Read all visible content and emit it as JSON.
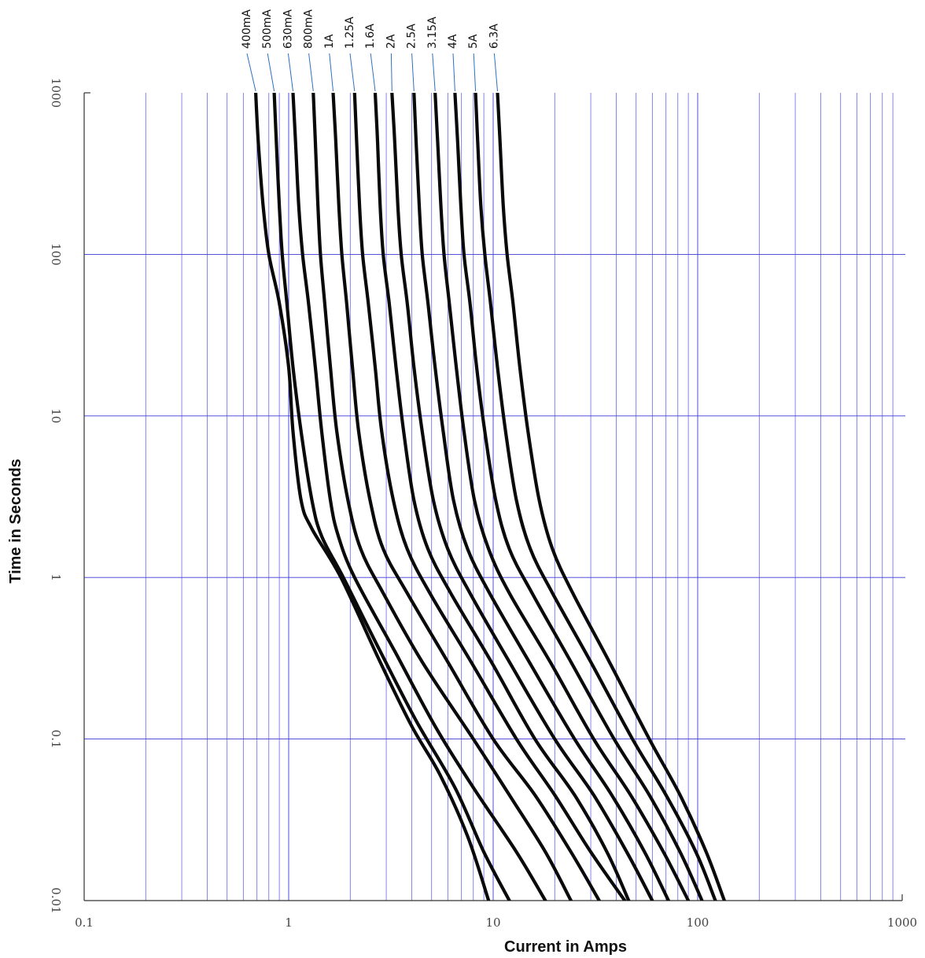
{
  "chart_data": {
    "type": "line",
    "title": "",
    "xlabel": "Current in Amps",
    "ylabel": "Time in Seconds",
    "xscale": "log",
    "yscale": "log",
    "xlim": [
      0.1,
      1000
    ],
    "ylim": [
      0.01,
      1000
    ],
    "x_tick_labels": [
      "0.1",
      "1",
      "10",
      "100",
      "1000"
    ],
    "y_tick_labels": [
      "0.01",
      "0.1",
      "1",
      "10",
      "100",
      "1000"
    ],
    "grid": true,
    "legend_placement": "top, labels rotated with leader lines to curve ends",
    "colors": {
      "grid": "#3b3bd6",
      "curve": "#0a0a0a",
      "leader": "#2d6fc4"
    },
    "series": [
      {
        "name": "400mA",
        "points": [
          [
            0.69,
            1000
          ],
          [
            0.71,
            500
          ],
          [
            0.75,
            200
          ],
          [
            0.8,
            100
          ],
          [
            0.9,
            50
          ],
          [
            1.0,
            20
          ],
          [
            1.05,
            8
          ],
          [
            1.15,
            3
          ],
          [
            1.3,
            2
          ],
          [
            1.8,
            1
          ],
          [
            2.8,
            0.3
          ],
          [
            4.0,
            0.12
          ],
          [
            5.5,
            0.06
          ],
          [
            7.5,
            0.025
          ],
          [
            9.5,
            0.01
          ]
        ]
      },
      {
        "name": "500mA",
        "points": [
          [
            0.85,
            1000
          ],
          [
            0.87,
            500
          ],
          [
            0.9,
            200
          ],
          [
            0.93,
            100
          ],
          [
            0.98,
            50
          ],
          [
            1.05,
            20
          ],
          [
            1.15,
            8
          ],
          [
            1.3,
            3
          ],
          [
            1.45,
            1.8
          ],
          [
            1.85,
            1
          ],
          [
            2.8,
            0.35
          ],
          [
            4.2,
            0.13
          ],
          [
            6.5,
            0.05
          ],
          [
            9.0,
            0.02
          ],
          [
            12,
            0.01
          ]
        ]
      },
      {
        "name": "630mA",
        "points": [
          [
            1.05,
            1000
          ],
          [
            1.08,
            500
          ],
          [
            1.12,
            200
          ],
          [
            1.17,
            100
          ],
          [
            1.25,
            50
          ],
          [
            1.35,
            20
          ],
          [
            1.45,
            8
          ],
          [
            1.6,
            3
          ],
          [
            1.75,
            1.8
          ],
          [
            2.1,
            1
          ],
          [
            3.3,
            0.35
          ],
          [
            5.2,
            0.12
          ],
          [
            8.0,
            0.05
          ],
          [
            13,
            0.02
          ],
          [
            18,
            0.01
          ]
        ]
      },
      {
        "name": "800mA",
        "points": [
          [
            1.32,
            1000
          ],
          [
            1.35,
            500
          ],
          [
            1.39,
            200
          ],
          [
            1.43,
            100
          ],
          [
            1.5,
            50
          ],
          [
            1.6,
            20
          ],
          [
            1.72,
            8
          ],
          [
            1.95,
            3
          ],
          [
            2.25,
            1.5
          ],
          [
            2.9,
            0.8
          ],
          [
            4.5,
            0.3
          ],
          [
            8.0,
            0.1
          ],
          [
            12,
            0.045
          ],
          [
            18,
            0.02
          ],
          [
            24,
            0.01
          ]
        ]
      },
      {
        "name": "1A",
        "points": [
          [
            1.65,
            1000
          ],
          [
            1.7,
            500
          ],
          [
            1.76,
            200
          ],
          [
            1.82,
            100
          ],
          [
            1.92,
            50
          ],
          [
            2.05,
            20
          ],
          [
            2.2,
            8
          ],
          [
            2.5,
            3
          ],
          [
            2.9,
            1.5
          ],
          [
            3.8,
            0.8
          ],
          [
            6.0,
            0.3
          ],
          [
            10,
            0.1
          ],
          [
            16,
            0.045
          ],
          [
            24,
            0.02
          ],
          [
            33,
            0.01
          ]
        ]
      },
      {
        "name": "1.25A",
        "points": [
          [
            2.1,
            1000
          ],
          [
            2.15,
            500
          ],
          [
            2.22,
            200
          ],
          [
            2.3,
            100
          ],
          [
            2.45,
            50
          ],
          [
            2.65,
            20
          ],
          [
            2.85,
            8
          ],
          [
            3.25,
            3
          ],
          [
            3.8,
            1.5
          ],
          [
            4.9,
            0.8
          ],
          [
            7.8,
            0.3
          ],
          [
            13,
            0.1
          ],
          [
            20,
            0.045
          ],
          [
            30,
            0.02
          ],
          [
            44,
            0.01
          ]
        ]
      },
      {
        "name": "1.6A",
        "points": [
          [
            2.65,
            1000
          ],
          [
            2.72,
            500
          ],
          [
            2.8,
            200
          ],
          [
            2.9,
            100
          ],
          [
            3.1,
            50
          ],
          [
            3.35,
            20
          ],
          [
            3.65,
            8
          ],
          [
            4.1,
            3
          ],
          [
            4.8,
            1.5
          ],
          [
            6.2,
            0.8
          ],
          [
            9.8,
            0.3
          ],
          [
            16,
            0.1
          ],
          [
            25,
            0.045
          ],
          [
            36,
            0.02
          ],
          [
            46,
            0.01
          ]
        ]
      },
      {
        "name": "2A",
        "points": [
          [
            3.2,
            1000
          ],
          [
            3.3,
            500
          ],
          [
            3.42,
            200
          ],
          [
            3.55,
            100
          ],
          [
            3.8,
            50
          ],
          [
            4.1,
            20
          ],
          [
            4.5,
            8
          ],
          [
            5.1,
            3
          ],
          [
            6.0,
            1.5
          ],
          [
            7.7,
            0.8
          ],
          [
            12,
            0.3
          ],
          [
            20,
            0.1
          ],
          [
            31,
            0.045
          ],
          [
            45,
            0.02
          ],
          [
            60,
            0.01
          ]
        ]
      },
      {
        "name": "2.5A",
        "points": [
          [
            4.1,
            1000
          ],
          [
            4.2,
            500
          ],
          [
            4.35,
            200
          ],
          [
            4.5,
            100
          ],
          [
            4.8,
            50
          ],
          [
            5.2,
            20
          ],
          [
            5.7,
            8
          ],
          [
            6.4,
            3
          ],
          [
            7.5,
            1.5
          ],
          [
            9.6,
            0.8
          ],
          [
            15,
            0.3
          ],
          [
            25,
            0.1
          ],
          [
            38,
            0.045
          ],
          [
            55,
            0.02
          ],
          [
            72,
            0.01
          ]
        ]
      },
      {
        "name": "3.15A",
        "points": [
          [
            5.2,
            1000
          ],
          [
            5.35,
            500
          ],
          [
            5.55,
            200
          ],
          [
            5.75,
            100
          ],
          [
            6.1,
            50
          ],
          [
            6.6,
            20
          ],
          [
            7.2,
            8
          ],
          [
            8.1,
            3
          ],
          [
            9.5,
            1.5
          ],
          [
            12,
            0.8
          ],
          [
            19,
            0.3
          ],
          [
            31,
            0.1
          ],
          [
            47,
            0.045
          ],
          [
            68,
            0.02
          ],
          [
            90,
            0.01
          ]
        ]
      },
      {
        "name": "4A",
        "points": [
          [
            6.5,
            1000
          ],
          [
            6.7,
            500
          ],
          [
            6.95,
            200
          ],
          [
            7.2,
            100
          ],
          [
            7.7,
            50
          ],
          [
            8.3,
            20
          ],
          [
            9.1,
            8
          ],
          [
            10.3,
            3
          ],
          [
            12,
            1.5
          ],
          [
            15.5,
            0.8
          ],
          [
            24,
            0.3
          ],
          [
            39,
            0.1
          ],
          [
            58,
            0.045
          ],
          [
            82,
            0.02
          ],
          [
            105,
            0.01
          ]
        ]
      },
      {
        "name": "5A",
        "points": [
          [
            8.2,
            1000
          ],
          [
            8.4,
            500
          ],
          [
            8.7,
            200
          ],
          [
            9.1,
            100
          ],
          [
            9.7,
            50
          ],
          [
            10.5,
            20
          ],
          [
            11.5,
            8
          ],
          [
            13,
            3
          ],
          [
            15.2,
            1.5
          ],
          [
            19.5,
            0.8
          ],
          [
            30,
            0.3
          ],
          [
            48,
            0.1
          ],
          [
            70,
            0.045
          ],
          [
            98,
            0.02
          ],
          [
            122,
            0.01
          ]
        ]
      },
      {
        "name": "6.3A",
        "points": [
          [
            10.5,
            1000
          ],
          [
            10.8,
            500
          ],
          [
            11.2,
            200
          ],
          [
            11.7,
            100
          ],
          [
            12.5,
            50
          ],
          [
            13.5,
            20
          ],
          [
            14.8,
            8
          ],
          [
            16.8,
            3
          ],
          [
            19.5,
            1.5
          ],
          [
            24.5,
            0.8
          ],
          [
            37,
            0.3
          ],
          [
            58,
            0.1
          ],
          [
            82,
            0.045
          ],
          [
            110,
            0.02
          ],
          [
            135,
            0.01
          ]
        ]
      }
    ]
  }
}
